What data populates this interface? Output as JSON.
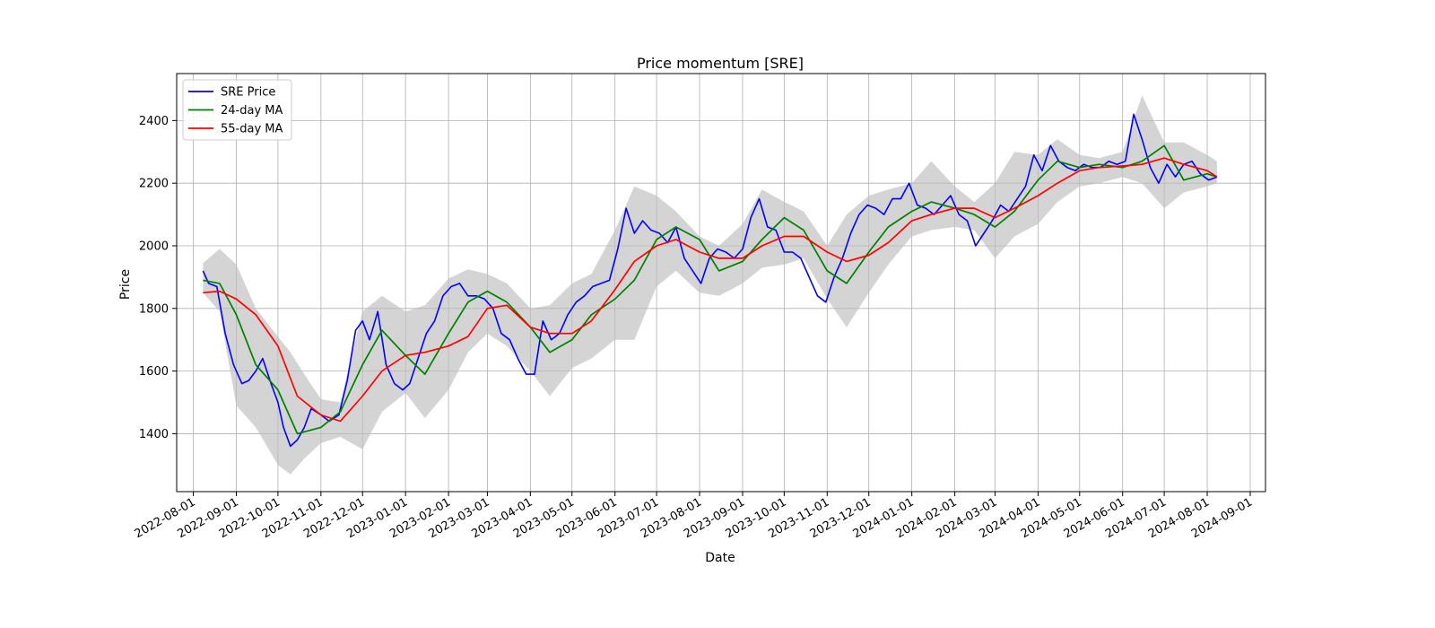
{
  "chart_data": {
    "type": "line",
    "title": "Price momentum [SRE]",
    "xlabel": "Date",
    "ylabel": "Price",
    "xlim": [
      "2022-07-20",
      "2024-09-12"
    ],
    "ylim": [
      1215,
      2550
    ],
    "x_ticks": [
      "2022-08-01",
      "2022-09-01",
      "2022-10-01",
      "2022-11-01",
      "2022-12-01",
      "2023-01-01",
      "2023-02-01",
      "2023-03-01",
      "2023-04-01",
      "2023-05-01",
      "2023-06-01",
      "2023-07-01",
      "2023-08-01",
      "2023-09-01",
      "2023-10-01",
      "2023-11-01",
      "2023-12-01",
      "2024-01-01",
      "2024-02-01",
      "2024-03-01",
      "2024-04-01",
      "2024-05-01",
      "2024-06-01",
      "2024-07-01",
      "2024-08-01",
      "2024-09-01"
    ],
    "y_ticks": [
      1400,
      1600,
      1800,
      2000,
      2200,
      2400
    ],
    "grid": true,
    "legend_position": "upper-left",
    "band": {
      "color": "#bdbdbd",
      "x": [
        "2022-08-08",
        "2022-08-20",
        "2022-09-01",
        "2022-09-15",
        "2022-10-01",
        "2022-10-10",
        "2022-10-20",
        "2022-11-01",
        "2022-11-15",
        "2022-12-01",
        "2022-12-15",
        "2023-01-01",
        "2023-01-15",
        "2023-02-01",
        "2023-02-15",
        "2023-03-01",
        "2023-03-15",
        "2023-04-01",
        "2023-04-15",
        "2023-05-01",
        "2023-05-15",
        "2023-06-01",
        "2023-06-15",
        "2023-07-01",
        "2023-07-15",
        "2023-08-01",
        "2023-08-15",
        "2023-09-01",
        "2023-09-15",
        "2023-10-01",
        "2023-10-15",
        "2023-11-01",
        "2023-11-15",
        "2023-12-01",
        "2023-12-15",
        "2024-01-01",
        "2024-01-15",
        "2024-02-01",
        "2024-02-15",
        "2024-03-01",
        "2024-03-15",
        "2024-04-01",
        "2024-04-15",
        "2024-05-01",
        "2024-05-15",
        "2024-06-01",
        "2024-06-15",
        "2024-07-01",
        "2024-07-15",
        "2024-08-01",
        "2024-08-08"
      ],
      "upper": [
        1945,
        1990,
        1940,
        1800,
        1710,
        1660,
        1590,
        1510,
        1500,
        1790,
        1840,
        1790,
        1810,
        1895,
        1925,
        1910,
        1880,
        1800,
        1810,
        1880,
        1910,
        2050,
        2190,
        2160,
        2110,
        2030,
        2000,
        2070,
        2180,
        2140,
        2110,
        2000,
        2100,
        2160,
        2180,
        2200,
        2270,
        2190,
        2140,
        2200,
        2300,
        2290,
        2340,
        2290,
        2280,
        2300,
        2480,
        2330,
        2330,
        2290,
        2270
      ],
      "lower": [
        1850,
        1790,
        1490,
        1420,
        1300,
        1270,
        1320,
        1370,
        1390,
        1350,
        1470,
        1530,
        1450,
        1540,
        1660,
        1720,
        1680,
        1600,
        1520,
        1610,
        1640,
        1700,
        1700,
        1870,
        1920,
        1850,
        1840,
        1880,
        1930,
        1940,
        1960,
        1830,
        1740,
        1850,
        1940,
        2030,
        2050,
        2060,
        2050,
        1960,
        2030,
        2070,
        2140,
        2190,
        2200,
        2220,
        2200,
        2120,
        2170,
        2190,
        2200
      ]
    },
    "series": [
      {
        "name": "SRE Price",
        "color": "#0000ff",
        "x": [
          "2022-08-08",
          "2022-08-12",
          "2022-08-18",
          "2022-08-24",
          "2022-08-30",
          "2022-09-05",
          "2022-09-10",
          "2022-09-15",
          "2022-09-20",
          "2022-09-26",
          "2022-10-01",
          "2022-10-05",
          "2022-10-10",
          "2022-10-15",
          "2022-10-20",
          "2022-10-25",
          "2022-11-01",
          "2022-11-07",
          "2022-11-14",
          "2022-11-20",
          "2022-11-26",
          "2022-12-01",
          "2022-12-06",
          "2022-12-12",
          "2022-12-18",
          "2022-12-24",
          "2022-12-30",
          "2023-01-04",
          "2023-01-10",
          "2023-01-16",
          "2023-01-22",
          "2023-01-28",
          "2023-02-03",
          "2023-02-09",
          "2023-02-15",
          "2023-02-21",
          "2023-02-27",
          "2023-03-05",
          "2023-03-11",
          "2023-03-17",
          "2023-03-23",
          "2023-03-29",
          "2023-04-04",
          "2023-04-10",
          "2023-04-16",
          "2023-04-22",
          "2023-04-28",
          "2023-05-04",
          "2023-05-10",
          "2023-05-16",
          "2023-05-22",
          "2023-05-28",
          "2023-06-03",
          "2023-06-09",
          "2023-06-15",
          "2023-06-21",
          "2023-06-27",
          "2023-07-03",
          "2023-07-09",
          "2023-07-15",
          "2023-07-21",
          "2023-07-27",
          "2023-08-02",
          "2023-08-08",
          "2023-08-14",
          "2023-08-20",
          "2023-08-26",
          "2023-09-01",
          "2023-09-07",
          "2023-09-13",
          "2023-09-19",
          "2023-09-25",
          "2023-10-01",
          "2023-10-07",
          "2023-10-13",
          "2023-10-19",
          "2023-10-25",
          "2023-10-31",
          "2023-11-06",
          "2023-11-12",
          "2023-11-18",
          "2023-11-24",
          "2023-11-30",
          "2023-12-06",
          "2023-12-12",
          "2023-12-18",
          "2023-12-24",
          "2023-12-30",
          "2024-01-05",
          "2024-01-11",
          "2024-01-17",
          "2024-01-23",
          "2024-01-29",
          "2024-02-04",
          "2024-02-10",
          "2024-02-16",
          "2024-02-22",
          "2024-02-28",
          "2024-03-05",
          "2024-03-11",
          "2024-03-17",
          "2024-03-23",
          "2024-03-29",
          "2024-04-04",
          "2024-04-10",
          "2024-04-16",
          "2024-04-22",
          "2024-04-28",
          "2024-05-04",
          "2024-05-10",
          "2024-05-16",
          "2024-05-22",
          "2024-05-28",
          "2024-06-03",
          "2024-06-09",
          "2024-06-15",
          "2024-06-21",
          "2024-06-27",
          "2024-07-03",
          "2024-07-09",
          "2024-07-15",
          "2024-07-21",
          "2024-07-27",
          "2024-08-02",
          "2024-08-08"
        ],
        "y": [
          1920,
          1880,
          1870,
          1720,
          1620,
          1560,
          1570,
          1600,
          1640,
          1560,
          1500,
          1420,
          1360,
          1380,
          1420,
          1480,
          1460,
          1440,
          1460,
          1570,
          1730,
          1760,
          1700,
          1790,
          1620,
          1560,
          1540,
          1560,
          1640,
          1720,
          1760,
          1840,
          1870,
          1880,
          1840,
          1840,
          1830,
          1800,
          1720,
          1700,
          1640,
          1590,
          1590,
          1760,
          1700,
          1720,
          1780,
          1820,
          1840,
          1870,
          1880,
          1890,
          1990,
          2120,
          2040,
          2080,
          2050,
          2040,
          2010,
          2060,
          1960,
          1920,
          1880,
          1960,
          1990,
          1980,
          1960,
          1990,
          2090,
          2150,
          2060,
          2050,
          1980,
          1980,
          1960,
          1900,
          1840,
          1820,
          1900,
          1960,
          2040,
          2100,
          2130,
          2120,
          2100,
          2150,
          2150,
          2200,
          2130,
          2120,
          2100,
          2130,
          2160,
          2100,
          2080,
          2000,
          2040,
          2080,
          2130,
          2110,
          2150,
          2190,
          2290,
          2240,
          2320,
          2270,
          2250,
          2240,
          2260,
          2250,
          2250,
          2270,
          2260,
          2270,
          2420,
          2340,
          2250,
          2200,
          2260,
          2220,
          2260,
          2270,
          2230,
          2210,
          2220
        ]
      },
      {
        "name": "24-day MA",
        "color": "#008000",
        "x": [
          "2022-08-08",
          "2022-08-20",
          "2022-09-01",
          "2022-09-15",
          "2022-10-01",
          "2022-10-15",
          "2022-11-01",
          "2022-11-15",
          "2022-12-01",
          "2022-12-15",
          "2023-01-01",
          "2023-01-15",
          "2023-02-01",
          "2023-02-15",
          "2023-03-01",
          "2023-03-15",
          "2023-04-01",
          "2023-04-15",
          "2023-05-01",
          "2023-05-15",
          "2023-06-01",
          "2023-06-15",
          "2023-07-01",
          "2023-07-15",
          "2023-08-01",
          "2023-08-15",
          "2023-09-01",
          "2023-09-15",
          "2023-10-01",
          "2023-10-15",
          "2023-11-01",
          "2023-11-15",
          "2023-12-01",
          "2023-12-15",
          "2024-01-01",
          "2024-01-15",
          "2024-02-01",
          "2024-02-15",
          "2024-03-01",
          "2024-03-15",
          "2024-04-01",
          "2024-04-15",
          "2024-05-01",
          "2024-05-15",
          "2024-06-01",
          "2024-06-15",
          "2024-07-01",
          "2024-07-15",
          "2024-08-01",
          "2024-08-08"
        ],
        "y": [
          1890,
          1880,
          1780,
          1620,
          1540,
          1400,
          1420,
          1470,
          1620,
          1730,
          1650,
          1590,
          1720,
          1820,
          1855,
          1820,
          1740,
          1660,
          1700,
          1780,
          1830,
          1890,
          2020,
          2060,
          2020,
          1920,
          1950,
          2020,
          2090,
          2050,
          1920,
          1880,
          1980,
          2060,
          2110,
          2140,
          2120,
          2100,
          2060,
          2110,
          2210,
          2270,
          2250,
          2260,
          2250,
          2270,
          2320,
          2210,
          2230,
          2220
        ]
      },
      {
        "name": "55-day MA",
        "color": "#ff0000",
        "x": [
          "2022-08-08",
          "2022-08-20",
          "2022-09-01",
          "2022-09-15",
          "2022-10-01",
          "2022-10-15",
          "2022-11-01",
          "2022-11-15",
          "2022-12-01",
          "2022-12-15",
          "2023-01-01",
          "2023-01-15",
          "2023-02-01",
          "2023-02-15",
          "2023-03-01",
          "2023-03-15",
          "2023-04-01",
          "2023-04-15",
          "2023-05-01",
          "2023-05-15",
          "2023-06-01",
          "2023-06-15",
          "2023-07-01",
          "2023-07-15",
          "2023-08-01",
          "2023-08-15",
          "2023-09-01",
          "2023-09-15",
          "2023-10-01",
          "2023-10-15",
          "2023-11-01",
          "2023-11-15",
          "2023-12-01",
          "2023-12-15",
          "2024-01-01",
          "2024-01-15",
          "2024-02-01",
          "2024-02-15",
          "2024-03-01",
          "2024-03-15",
          "2024-04-01",
          "2024-04-15",
          "2024-05-01",
          "2024-05-15",
          "2024-06-01",
          "2024-06-15",
          "2024-07-01",
          "2024-07-15",
          "2024-08-01",
          "2024-08-08"
        ],
        "y": [
          1850,
          1855,
          1830,
          1780,
          1680,
          1520,
          1460,
          1440,
          1520,
          1600,
          1650,
          1660,
          1680,
          1710,
          1800,
          1810,
          1740,
          1720,
          1720,
          1760,
          1860,
          1950,
          2000,
          2020,
          1980,
          1960,
          1960,
          2000,
          2030,
          2030,
          1980,
          1950,
          1970,
          2010,
          2080,
          2100,
          2120,
          2120,
          2090,
          2120,
          2160,
          2200,
          2240,
          2250,
          2255,
          2260,
          2280,
          2260,
          2240,
          2220
        ]
      }
    ]
  }
}
